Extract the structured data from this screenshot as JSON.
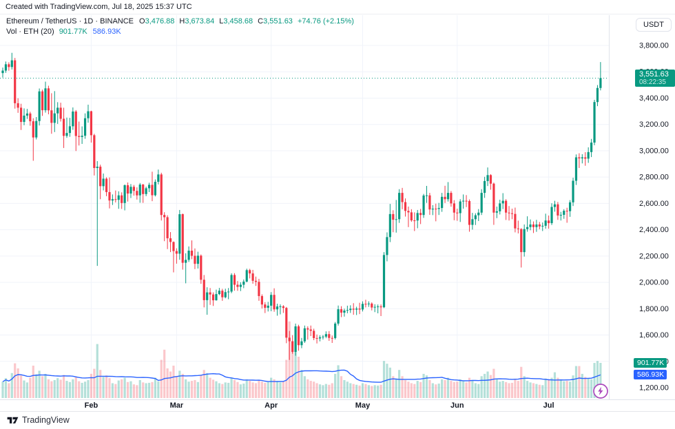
{
  "attribution": "Created with TradingView.com, Jul 18, 2025 15:37 UTC",
  "legend": {
    "symbol_line": "Ethereum / TetherUS · 1D · BINANCE",
    "ohlc": [
      {
        "label": "O",
        "value": "3,476.88"
      },
      {
        "label": "H",
        "value": "3,673.84"
      },
      {
        "label": "L",
        "value": "3,458.68"
      },
      {
        "label": "C",
        "value": "3,551.63"
      }
    ],
    "change": "+74.76 (+2.15%)",
    "volume_line": {
      "label": "Vol · ETH (20)",
      "vol": "901.77K",
      "ma": "586.93K"
    }
  },
  "price_scale": {
    "currency_button": "USDT",
    "last_price_label": "3,551.63",
    "countdown": "08:22:35",
    "vol_label": "901.77K",
    "vol_ma_label": "586.93K",
    "ticks": [
      {
        "value": 3800,
        "label": "3,800.00"
      },
      {
        "value": 3600,
        "label": "3,600.00"
      },
      {
        "value": 3400,
        "label": "3,400.00"
      },
      {
        "value": 3200,
        "label": "3,200.00"
      },
      {
        "value": 3000,
        "label": "3,000.00"
      },
      {
        "value": 2800,
        "label": "2,800.00"
      },
      {
        "value": 2600,
        "label": "2,600.00"
      },
      {
        "value": 2400,
        "label": "2,400.00"
      },
      {
        "value": 2200,
        "label": "2,200.00"
      },
      {
        "value": 2000,
        "label": "2,000.00"
      },
      {
        "value": 1800,
        "label": "1,800.00"
      },
      {
        "value": 1600,
        "label": "1,600.00"
      },
      {
        "value": 1400,
        "label": "1,400.00"
      },
      {
        "value": 1200,
        "label": "1,200.00"
      }
    ]
  },
  "time_scale": {
    "months": [
      {
        "label": "Feb",
        "index": 29
      },
      {
        "label": "Mar",
        "index": 57
      },
      {
        "label": "Apr",
        "index": 88
      },
      {
        "label": "May",
        "index": 118
      },
      {
        "label": "Jun",
        "index": 149
      },
      {
        "label": "Jul",
        "index": 179
      }
    ]
  },
  "footer": {
    "logo_text": "TradingView"
  },
  "colors": {
    "up": "#089981",
    "down": "#F23645",
    "vol_up": "rgba(8,153,129,0.30)",
    "vol_down": "rgba(242,54,69,0.28)",
    "ma_line": "#2962FF",
    "grid": "#f0f3fa",
    "axis_border": "#e0e3eb",
    "text": "#131722",
    "accent_purple": "#ab47bc"
  },
  "chart_data": {
    "type": "candlestick+volume",
    "title": "Ethereum / TetherUS · 1D · BINANCE",
    "interval": "1D",
    "y_axis": {
      "min": 1200,
      "max": 3800,
      "tick_step": 200,
      "unit": "USDT"
    },
    "volume_ma_period": 20,
    "last_close": 3551.63,
    "columns": [
      "open",
      "high",
      "low",
      "close",
      "volume_k"
    ],
    "candles": [
      [
        3590,
        3632,
        3556,
        3609,
        420
      ],
      [
        3609,
        3678,
        3592,
        3657,
        510
      ],
      [
        3657,
        3672,
        3608,
        3636,
        380
      ],
      [
        3636,
        3744,
        3617,
        3687,
        640
      ],
      [
        3687,
        3705,
        3320,
        3361,
        890
      ],
      [
        3361,
        3399,
        3288,
        3327,
        760
      ],
      [
        3327,
        3357,
        3158,
        3219,
        580
      ],
      [
        3219,
        3322,
        3194,
        3267,
        450
      ],
      [
        3267,
        3318,
        3242,
        3283,
        400
      ],
      [
        3283,
        3296,
        3190,
        3224,
        520
      ],
      [
        3224,
        3247,
        2924,
        3101,
        830
      ],
      [
        3101,
        3256,
        3086,
        3226,
        610
      ],
      [
        3226,
        3473,
        3192,
        3451,
        700
      ],
      [
        3451,
        3464,
        3265,
        3308,
        560
      ],
      [
        3308,
        3525,
        3290,
        3474,
        620
      ],
      [
        3474,
        3494,
        3277,
        3307,
        480
      ],
      [
        3307,
        3437,
        3129,
        3212,
        430
      ],
      [
        3212,
        3453,
        3142,
        3284,
        460
      ],
      [
        3284,
        3369,
        3204,
        3327,
        510
      ],
      [
        3327,
        3365,
        3222,
        3243,
        470
      ],
      [
        3243,
        3327,
        3021,
        3113,
        590
      ],
      [
        3113,
        3252,
        3098,
        3135,
        440
      ],
      [
        3135,
        3250,
        3106,
        3186,
        410
      ],
      [
        3186,
        3329,
        3159,
        3298,
        480
      ],
      [
        3298,
        3309,
        2998,
        3112,
        550
      ],
      [
        3112,
        3222,
        3040,
        3105,
        430
      ],
      [
        3105,
        3185,
        3052,
        3114,
        390
      ],
      [
        3114,
        3284,
        3091,
        3247,
        420
      ],
      [
        3247,
        3350,
        3213,
        3300,
        460
      ],
      [
        3300,
        3304,
        3062,
        3118,
        620
      ],
      [
        3118,
        3129,
        2812,
        2869,
        750
      ],
      [
        2869,
        2921,
        2125,
        2879,
        1385
      ],
      [
        2879,
        2894,
        2632,
        2731,
        720
      ],
      [
        2731,
        2827,
        2699,
        2788,
        540
      ],
      [
        2788,
        2798,
        2655,
        2686,
        580
      ],
      [
        2686,
        2797,
        2562,
        2622,
        510
      ],
      [
        2622,
        2668,
        2588,
        2632,
        380
      ],
      [
        2632,
        2698,
        2607,
        2627,
        360
      ],
      [
        2627,
        2692,
        2559,
        2661,
        450
      ],
      [
        2661,
        2684,
        2558,
        2603,
        480
      ],
      [
        2603,
        2744,
        2547,
        2738,
        520
      ],
      [
        2738,
        2759,
        2614,
        2675,
        410
      ],
      [
        2675,
        2747,
        2641,
        2726,
        430
      ],
      [
        2726,
        2740,
        2659,
        2695,
        350
      ],
      [
        2695,
        2722,
        2629,
        2661,
        330
      ],
      [
        2661,
        2755,
        2605,
        2743,
        460
      ],
      [
        2743,
        2748,
        2604,
        2671,
        400
      ],
      [
        2671,
        2727,
        2655,
        2715,
        380
      ],
      [
        2715,
        2757,
        2686,
        2741,
        390
      ],
      [
        2741,
        2841,
        2617,
        2662,
        410
      ],
      [
        2662,
        2782,
        2653,
        2764,
        520
      ],
      [
        2764,
        2857,
        2744,
        2820,
        430
      ],
      [
        2820,
        2833,
        2470,
        2512,
        980
      ],
      [
        2512,
        2533,
        2313,
        2495,
        1240
      ],
      [
        2495,
        2510,
        2253,
        2335,
        760
      ],
      [
        2335,
        2382,
        2230,
        2307,
        680
      ],
      [
        2307,
        2311,
        2076,
        2238,
        830
      ],
      [
        2238,
        2259,
        2142,
        2218,
        560
      ],
      [
        2218,
        2550,
        2172,
        2518,
        700
      ],
      [
        2518,
        2523,
        2097,
        2149,
        620
      ],
      [
        2149,
        2221,
        1993,
        2171,
        480
      ],
      [
        2171,
        2273,
        2155,
        2241,
        420
      ],
      [
        2241,
        2319,
        2176,
        2202,
        440
      ],
      [
        2202,
        2258,
        2101,
        2141,
        460
      ],
      [
        2141,
        2233,
        2105,
        2203,
        410
      ],
      [
        2203,
        2212,
        1989,
        2020,
        580
      ],
      [
        2020,
        2056,
        1810,
        1865,
        720
      ],
      [
        1865,
        1963,
        1754,
        1924,
        640
      ],
      [
        1924,
        1957,
        1829,
        1908,
        520
      ],
      [
        1908,
        1924,
        1821,
        1864,
        470
      ],
      [
        1864,
        1945,
        1861,
        1911,
        430
      ],
      [
        1911,
        1958,
        1903,
        1937,
        380
      ],
      [
        1937,
        1951,
        1860,
        1887,
        360
      ],
      [
        1887,
        1952,
        1879,
        1926,
        400
      ],
      [
        1926,
        1957,
        1872,
        1930,
        390
      ],
      [
        1930,
        2069,
        1918,
        2056,
        520
      ],
      [
        2056,
        2070,
        1937,
        1982,
        460
      ],
      [
        1982,
        2010,
        1936,
        1966,
        410
      ],
      [
        1966,
        2001,
        1934,
        1982,
        350
      ],
      [
        1982,
        2022,
        1956,
        2006,
        370
      ],
      [
        2006,
        2104,
        2000,
        2093,
        480
      ],
      [
        2093,
        2103,
        2030,
        2068,
        440
      ],
      [
        2068,
        2095,
        1990,
        2012,
        400
      ],
      [
        2012,
        2044,
        1973,
        2004,
        380
      ],
      [
        2004,
        2027,
        1860,
        1896,
        450
      ],
      [
        1896,
        1909,
        1802,
        1832,
        420
      ],
      [
        1832,
        1850,
        1767,
        1807,
        390
      ],
      [
        1807,
        1852,
        1779,
        1823,
        410
      ],
      [
        1823,
        1926,
        1781,
        1905,
        520
      ],
      [
        1905,
        1955,
        1777,
        1795,
        480
      ],
      [
        1795,
        1838,
        1747,
        1817,
        440
      ],
      [
        1817,
        1833,
        1757,
        1818,
        400
      ],
      [
        1818,
        1827,
        1768,
        1806,
        420
      ],
      [
        1806,
        1813,
        1538,
        1580,
        980
      ],
      [
        1580,
        1631,
        1411,
        1553,
        1965
      ],
      [
        1553,
        1599,
        1458,
        1472,
        1240
      ],
      [
        1472,
        1687,
        1443,
        1666,
        1820
      ],
      [
        1666,
        1678,
        1481,
        1523,
        1060
      ],
      [
        1523,
        1578,
        1500,
        1552,
        720
      ],
      [
        1552,
        1672,
        1540,
        1651,
        560
      ],
      [
        1651,
        1666,
        1565,
        1642,
        480
      ],
      [
        1642,
        1672,
        1592,
        1632,
        440
      ],
      [
        1632,
        1648,
        1561,
        1577,
        420
      ],
      [
        1577,
        1604,
        1536,
        1574,
        380
      ],
      [
        1574,
        1598,
        1552,
        1583,
        350
      ],
      [
        1583,
        1600,
        1566,
        1588,
        330
      ],
      [
        1588,
        1628,
        1576,
        1607,
        360
      ],
      [
        1607,
        1630,
        1556,
        1578,
        340
      ],
      [
        1578,
        1596,
        1540,
        1577,
        380
      ],
      [
        1577,
        1699,
        1566,
        1687,
        620
      ],
      [
        1687,
        1824,
        1672,
        1796,
        840
      ],
      [
        1796,
        1819,
        1736,
        1770,
        560
      ],
      [
        1770,
        1800,
        1740,
        1786,
        460
      ],
      [
        1786,
        1823,
        1765,
        1790,
        420
      ],
      [
        1790,
        1826,
        1768,
        1800,
        380
      ],
      [
        1800,
        1842,
        1754,
        1793,
        360
      ],
      [
        1793,
        1815,
        1752,
        1801,
        340
      ],
      [
        1801,
        1845,
        1759,
        1794,
        320
      ],
      [
        1794,
        1856,
        1779,
        1837,
        380
      ],
      [
        1837,
        1868,
        1810,
        1834,
        360
      ],
      [
        1834,
        1856,
        1814,
        1839,
        330
      ],
      [
        1839,
        1848,
        1787,
        1809,
        310
      ],
      [
        1809,
        1834,
        1774,
        1814,
        330
      ],
      [
        1814,
        1832,
        1765,
        1817,
        320
      ],
      [
        1817,
        1832,
        1744,
        1811,
        340
      ],
      [
        1811,
        2230,
        1805,
        2208,
        950
      ],
      [
        2208,
        2380,
        2160,
        2344,
        880
      ],
      [
        2344,
        2596,
        2306,
        2519,
        780
      ],
      [
        2519,
        2548,
        2381,
        2476,
        560
      ],
      [
        2476,
        2626,
        2378,
        2480,
        480
      ],
      [
        2480,
        2708,
        2452,
        2680,
        720
      ],
      [
        2680,
        2718,
        2556,
        2610,
        560
      ],
      [
        2610,
        2638,
        2500,
        2543,
        460
      ],
      [
        2543,
        2576,
        2420,
        2532,
        420
      ],
      [
        2532,
        2556,
        2460,
        2471,
        380
      ],
      [
        2471,
        2532,
        2390,
        2470,
        360
      ],
      [
        2470,
        2550,
        2411,
        2527,
        440
      ],
      [
        2527,
        2558,
        2443,
        2512,
        410
      ],
      [
        2512,
        2672,
        2490,
        2660,
        620
      ],
      [
        2660,
        2733,
        2604,
        2661,
        580
      ],
      [
        2661,
        2680,
        2513,
        2554,
        460
      ],
      [
        2554,
        2587,
        2511,
        2560,
        380
      ],
      [
        2560,
        2598,
        2464,
        2558,
        350
      ],
      [
        2558,
        2604,
        2512,
        2565,
        370
      ],
      [
        2565,
        2680,
        2536,
        2650,
        480
      ],
      [
        2650,
        2734,
        2603,
        2632,
        460
      ],
      [
        2632,
        2762,
        2614,
        2680,
        520
      ],
      [
        2680,
        2694,
        2575,
        2600,
        440
      ],
      [
        2600,
        2625,
        2472,
        2530,
        410
      ],
      [
        2530,
        2560,
        2468,
        2526,
        420
      ],
      [
        2526,
        2632,
        2459,
        2615,
        480
      ],
      [
        2615,
        2668,
        2560,
        2620,
        440
      ],
      [
        2620,
        2663,
        2572,
        2618,
        400
      ],
      [
        2618,
        2630,
        2385,
        2437,
        520
      ],
      [
        2437,
        2528,
        2401,
        2480,
        460
      ],
      [
        2480,
        2525,
        2436,
        2510,
        380
      ],
      [
        2510,
        2557,
        2466,
        2530,
        360
      ],
      [
        2530,
        2708,
        2512,
        2680,
        560
      ],
      [
        2680,
        2802,
        2642,
        2770,
        620
      ],
      [
        2770,
        2873,
        2732,
        2815,
        680
      ],
      [
        2815,
        2822,
        2704,
        2750,
        590
      ],
      [
        2750,
        2758,
        2437,
        2530,
        750
      ],
      [
        2530,
        2576,
        2488,
        2540,
        480
      ],
      [
        2540,
        2628,
        2516,
        2600,
        420
      ],
      [
        2600,
        2678,
        2557,
        2620,
        440
      ],
      [
        2620,
        2632,
        2474,
        2530,
        410
      ],
      [
        2530,
        2580,
        2470,
        2525,
        380
      ],
      [
        2525,
        2560,
        2480,
        2520,
        390
      ],
      [
        2520,
        2568,
        2380,
        2410,
        480
      ],
      [
        2410,
        2469,
        2372,
        2405,
        440
      ],
      [
        2405,
        2412,
        2113,
        2230,
        800
      ],
      [
        2230,
        2440,
        2196,
        2405,
        560
      ],
      [
        2405,
        2502,
        2385,
        2420,
        440
      ],
      [
        2420,
        2478,
        2396,
        2440,
        400
      ],
      [
        2440,
        2463,
        2375,
        2420,
        380
      ],
      [
        2420,
        2475,
        2384,
        2440,
        360
      ],
      [
        2440,
        2459,
        2404,
        2425,
        340
      ],
      [
        2425,
        2455,
        2390,
        2430,
        330
      ],
      [
        2430,
        2522,
        2408,
        2470,
        500
      ],
      [
        2470,
        2508,
        2408,
        2450,
        480
      ],
      [
        2450,
        2601,
        2436,
        2573,
        520
      ],
      [
        2573,
        2620,
        2537,
        2593,
        660
      ],
      [
        2593,
        2611,
        2475,
        2508,
        520
      ],
      [
        2508,
        2536,
        2470,
        2513,
        450
      ],
      [
        2513,
        2556,
        2483,
        2544,
        430
      ],
      [
        2544,
        2567,
        2453,
        2541,
        440
      ],
      [
        2541,
        2625,
        2498,
        2608,
        420
      ],
      [
        2608,
        2795,
        2580,
        2772,
        580
      ],
      [
        2772,
        2972,
        2740,
        2950,
        820
      ],
      [
        2950,
        2981,
        2869,
        2942,
        820
      ],
      [
        2942,
        2974,
        2904,
        2950,
        620
      ],
      [
        2950,
        2989,
        2886,
        2940,
        540
      ],
      [
        2940,
        3026,
        2908,
        2990,
        500
      ],
      [
        2990,
        3090,
        2952,
        3062,
        480
      ],
      [
        3062,
        3387,
        3042,
        3370,
        900
      ],
      [
        3370,
        3499,
        3339,
        3477,
        950
      ],
      [
        3476.88,
        3673.84,
        3458.68,
        3551.63,
        901.77
      ]
    ]
  }
}
